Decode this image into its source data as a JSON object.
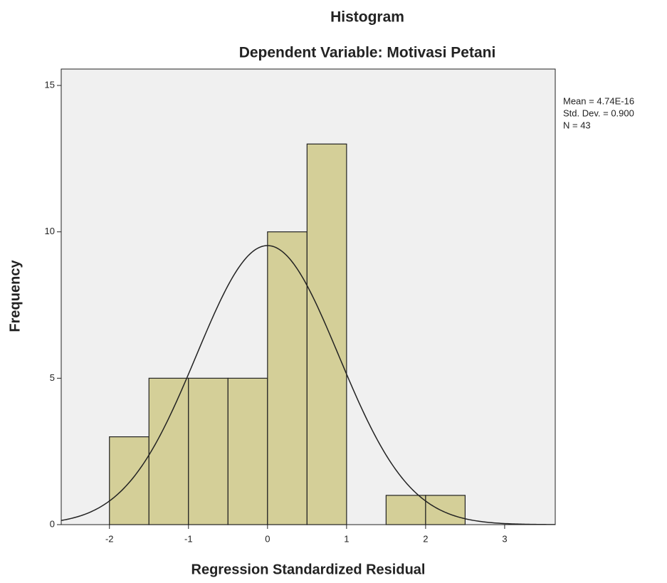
{
  "chart_data": {
    "type": "histogram",
    "title": "Histogram",
    "subtitle": "Dependent Variable: Motivasi Petani",
    "x_label": "Regression Standardized Residual",
    "y_label": "Frequency",
    "bins": [
      -2,
      -1.5,
      -1,
      -0.5,
      0,
      0.5,
      1,
      1.5,
      2,
      2.5
    ],
    "values": [
      3,
      5,
      5,
      5,
      10,
      13,
      0,
      1,
      1
    ],
    "color": "#d4cf98",
    "xlim": [
      -2.61,
      3.64
    ],
    "ylim": [
      0,
      15.56
    ],
    "xticks": [
      -2,
      -1,
      0,
      1,
      2,
      3
    ],
    "yticks": [
      0,
      5,
      10,
      15
    ],
    "stats": [
      {
        "value": 4.74e-16,
        "label": "Mean = 4.74E-16"
      },
      {
        "value": 0.9,
        "label": "Std. Dev. = 0.900"
      },
      {
        "value": 43,
        "label": "N = 43"
      }
    ]
  }
}
